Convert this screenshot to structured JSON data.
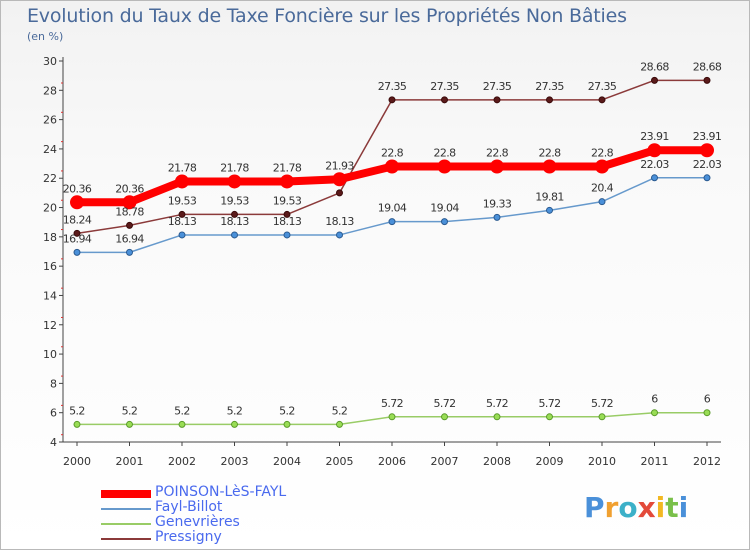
{
  "header": {
    "title": "Evolution du Taux de Taxe Foncière sur les Propriétés Non Bâties",
    "unit": "(en %)"
  },
  "logo": {
    "text": "Proxiti"
  },
  "chart_data": {
    "type": "line",
    "title": "Evolution du Taux de Taxe Foncière sur les Propriétés Non Bâties",
    "ylabel": "(en %)",
    "xlabel": "",
    "ylim": [
      4,
      30
    ],
    "yticks": [
      4,
      6,
      8,
      10,
      12,
      14,
      16,
      18,
      20,
      22,
      24,
      26,
      28,
      30
    ],
    "categories": [
      "2000",
      "2001",
      "2002",
      "2003",
      "2004",
      "2005",
      "2006",
      "2007",
      "2008",
      "2009",
      "2010",
      "2011",
      "2012"
    ],
    "grid": false,
    "legend_position": "bottom-left",
    "series": [
      {
        "name": "POINSON-LèS-FAYL",
        "color": "#ff0000",
        "values": [
          20.36,
          20.36,
          21.78,
          21.78,
          21.78,
          21.93,
          22.8,
          22.8,
          22.8,
          22.8,
          22.8,
          23.91,
          23.91
        ],
        "labels": [
          "20.36",
          "20.36",
          "21.78",
          "21.78",
          "21.78",
          "21.93",
          "22.8",
          "22.8",
          "22.8",
          "22.8",
          "22.8",
          "23.91",
          "23.91"
        ]
      },
      {
        "name": "Fayl-Billot",
        "color": "#6699cc",
        "values": [
          16.94,
          16.94,
          18.13,
          18.13,
          18.13,
          18.13,
          19.04,
          19.04,
          19.33,
          19.81,
          20.4,
          22.03,
          22.03
        ],
        "labels": [
          "16.94",
          "16.94",
          "18.13",
          "18.13",
          "18.13",
          "18.13",
          "19.04",
          "19.04",
          "19.33",
          "19.81",
          "20.4",
          "22.03",
          "22.03"
        ]
      },
      {
        "name": "Genevrières",
        "color": "#99cc66",
        "values": [
          5.2,
          5.2,
          5.2,
          5.2,
          5.2,
          5.2,
          5.72,
          5.72,
          5.72,
          5.72,
          5.72,
          6,
          6
        ],
        "labels": [
          "5.2",
          "5.2",
          "5.2",
          "5.2",
          "5.2",
          "5.2",
          "5.72",
          "5.72",
          "5.72",
          "5.72",
          "5.72",
          "6",
          "6"
        ]
      },
      {
        "name": "Pressigny",
        "color": "#8b3a3a",
        "values": [
          18.24,
          18.78,
          19.53,
          19.53,
          19.53,
          21,
          27.35,
          27.35,
          27.35,
          27.35,
          27.35,
          28.68,
          28.68
        ],
        "labels": [
          "18.24",
          "18.78",
          "19.53",
          "19.53",
          "19.53",
          "",
          "27.35",
          "27.35",
          "27.35",
          "27.35",
          "27.35",
          "28.68",
          "28.68"
        ]
      }
    ]
  }
}
